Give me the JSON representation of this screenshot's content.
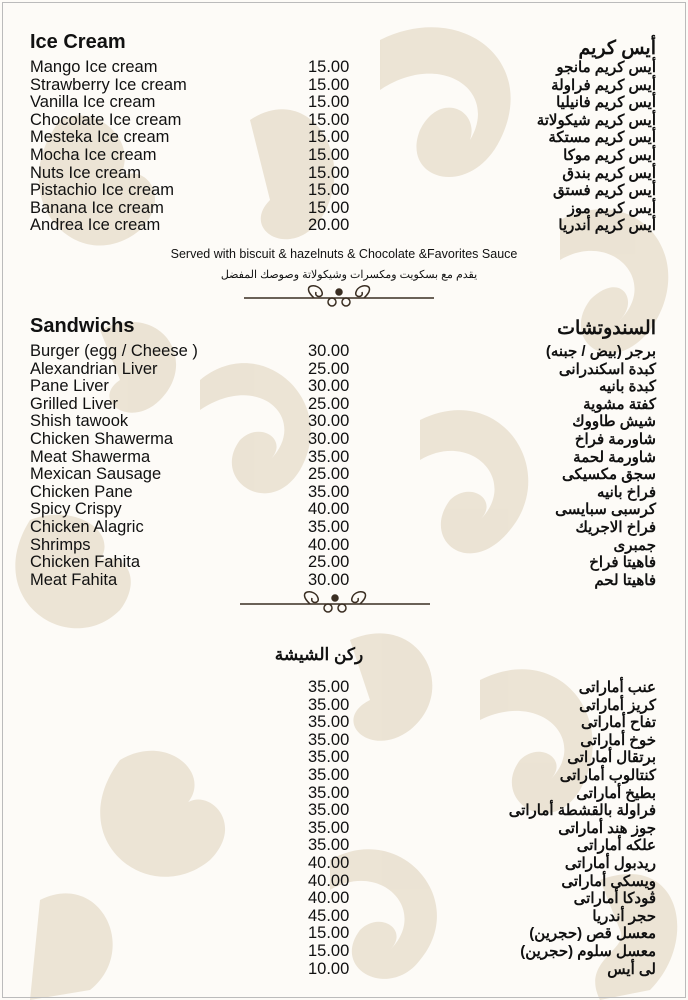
{
  "colors": {
    "pattern": "#e9dfcf",
    "text": "#111111",
    "ornament": "#3a2e22"
  },
  "ice_cream": {
    "title_en": "Ice Cream",
    "title_ar": "أيس كريم",
    "items": [
      {
        "en": "Mango Ice cream",
        "price": "15.00",
        "ar": "أيس كريم مانجو"
      },
      {
        "en": "Strawberry Ice cream",
        "price": "15.00",
        "ar": "أيس كريم فراولة"
      },
      {
        "en": "Vanilla Ice cream",
        "price": "15.00",
        "ar": "أيس كريم فانيليا"
      },
      {
        "en": "Chocolate Ice cream",
        "price": "15.00",
        "ar": "أيس كريم شيكولاتة"
      },
      {
        "en": "Mesteka Ice cream",
        "price": "15.00",
        "ar": "أيس كريم مستكة"
      },
      {
        "en": "Mocha Ice cream",
        "price": "15.00",
        "ar": "أيس كريم موكا"
      },
      {
        "en": "Nuts Ice cream",
        "price": "15.00",
        "ar": "أيس كريم بندق"
      },
      {
        "en": "Pistachio Ice cream",
        "price": "15.00",
        "ar": "أيس كريم فستق"
      },
      {
        "en": "Banana Ice cream",
        "price": "15.00",
        "ar": "أيس كريم موز"
      },
      {
        "en": "Andrea Ice cream",
        "price": "20.00",
        "ar": "أيس كريم أندريا"
      }
    ],
    "note_en": "Served with biscuit & hazelnuts & Chocolate &Favorites Sauce",
    "note_ar": "يقدم مع بسكويت ومكسرات وشيكولاتة وصوصك المفضل"
  },
  "sandwiches": {
    "title_en": "Sandwichs",
    "title_ar": "السندوتشات",
    "items": [
      {
        "en": "Burger (egg / Cheese )",
        "price": "30.00",
        "ar": "برجر (بيض / جبنه)"
      },
      {
        "en": "Alexandrian Liver",
        "price": "25.00",
        "ar": "كبدة اسكندرانى"
      },
      {
        "en": "Pane Liver",
        "price": "30.00",
        "ar": "كبدة بانيه"
      },
      {
        "en": "Grilled Liver",
        "price": "25.00",
        "ar": "كفتة مشوية"
      },
      {
        "en": "Shish tawook",
        "price": "30.00",
        "ar": "شيش طاووك"
      },
      {
        "en": "Chicken Shawerma",
        "price": "30.00",
        "ar": "شاورمة فراخ"
      },
      {
        "en": "Meat Shawerma",
        "price": "35.00",
        "ar": "شاورمة لحمة"
      },
      {
        "en": "Mexican Sausage",
        "price": "25.00",
        "ar": "سجق مكسيكى"
      },
      {
        "en": "Chicken Pane",
        "price": "35.00",
        "ar": "فراخ بانيه"
      },
      {
        "en": "Spicy Crispy",
        "price": "40.00",
        "ar": "كرسبى سبايسى"
      },
      {
        "en": "Chicken Alagric",
        "price": "35.00",
        "ar": "فراخ الاجريك"
      },
      {
        "en": "Shrimps",
        "price": "40.00",
        "ar": "جمبرى"
      },
      {
        "en": "Chicken Fahita",
        "price": "25.00",
        "ar": "فاهيتا فراخ"
      },
      {
        "en": "Meat Fahita",
        "price": "30.00",
        "ar": "فاهيتا لحم"
      }
    ]
  },
  "shisha": {
    "title_ar": "ركن الشيشة",
    "items": [
      {
        "price": "35.00",
        "ar": "عنب أماراتى"
      },
      {
        "price": "35.00",
        "ar": "كريز أماراتى"
      },
      {
        "price": "35.00",
        "ar": "تفاح أماراتى"
      },
      {
        "price": "35.00",
        "ar": "خوخ أماراتى"
      },
      {
        "price": "35.00",
        "ar": "برتقال أماراتى"
      },
      {
        "price": "35.00",
        "ar": "كنتالوب أماراتى"
      },
      {
        "price": "35.00",
        "ar": "بطيخ أماراتى"
      },
      {
        "price": "35.00",
        "ar": "فراولة بالقشطة أماراتى"
      },
      {
        "price": "35.00",
        "ar": "جوز هند أماراتى"
      },
      {
        "price": "35.00",
        "ar": "علكه أماراتى"
      },
      {
        "price": "40.00",
        "ar": "ريدبول أماراتى"
      },
      {
        "price": "40.00",
        "ar": "ويسكى أماراتى"
      },
      {
        "price": "40.00",
        "ar": "ڤودكا أماراتى"
      },
      {
        "price": "45.00",
        "ar": "حجر أندريا"
      },
      {
        "price": "15.00",
        "ar": "معسل قص (حجرين)"
      },
      {
        "price": "15.00",
        "ar": "معسل سلوم (حجرين)"
      },
      {
        "price": "10.00",
        "ar": "لى أيس"
      }
    ]
  }
}
